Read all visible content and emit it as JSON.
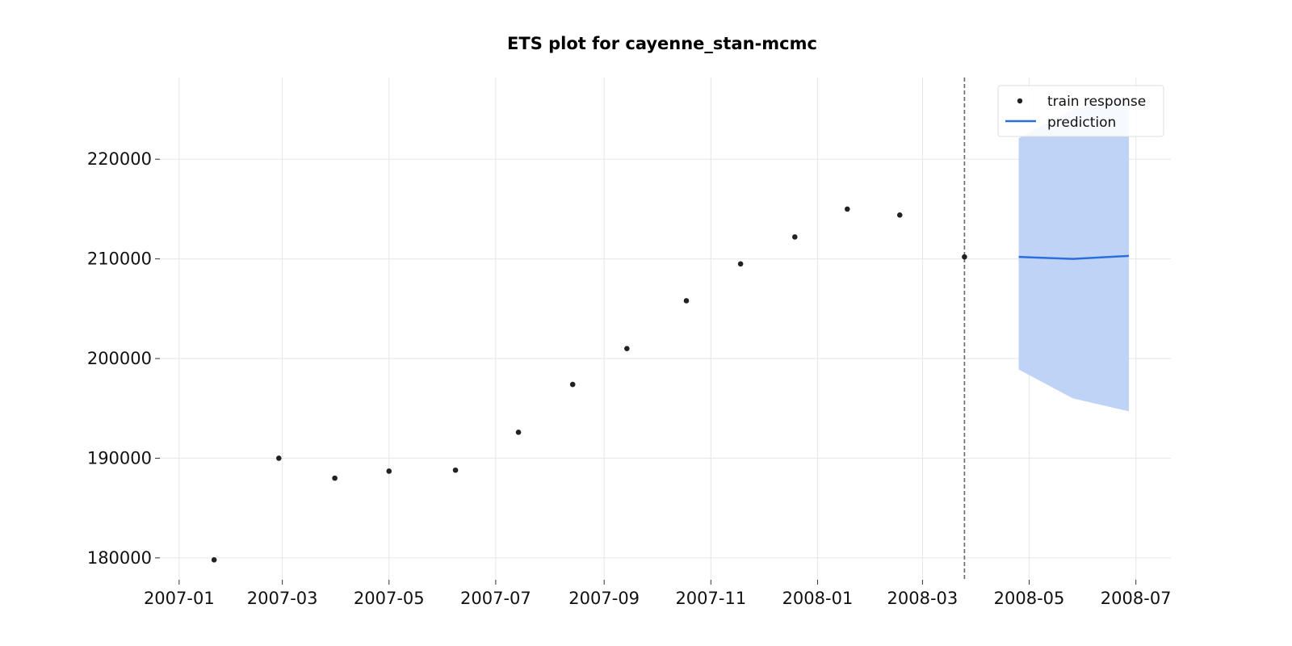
{
  "chart_data": {
    "type": "scatter",
    "title": "ETS plot for cayenne_stan-mcmc",
    "xlabel": "",
    "ylabel": "",
    "x_ticks": [
      "2007-01",
      "2007-03",
      "2007-05",
      "2007-07",
      "2007-09",
      "2007-11",
      "2008-01",
      "2008-03",
      "2008-05",
      "2008-07"
    ],
    "y_ticks": [
      180000,
      190000,
      200000,
      210000,
      220000
    ],
    "xlim": [
      "2006-12-21",
      "2008-07-21"
    ],
    "ylim": [
      177800,
      228200
    ],
    "grid": true,
    "legend_position": "top-right",
    "cutoff_date": "2008-03-25",
    "series": [
      {
        "name": "train response",
        "kind": "scatter",
        "color": "#222222",
        "points": [
          {
            "x": "2007-01-21",
            "y": 179800
          },
          {
            "x": "2007-02-27",
            "y": 190000
          },
          {
            "x": "2007-03-31",
            "y": 188000
          },
          {
            "x": "2007-05-01",
            "y": 188700
          },
          {
            "x": "2007-06-08",
            "y": 188800
          },
          {
            "x": "2007-07-14",
            "y": 192600
          },
          {
            "x": "2007-08-14",
            "y": 197400
          },
          {
            "x": "2007-09-14",
            "y": 201000
          },
          {
            "x": "2007-10-18",
            "y": 205800
          },
          {
            "x": "2007-11-18",
            "y": 209500
          },
          {
            "x": "2007-12-19",
            "y": 212200
          },
          {
            "x": "2008-01-18",
            "y": 215000
          },
          {
            "x": "2008-02-17",
            "y": 214400
          },
          {
            "x": "2008-03-25",
            "y": 210200
          }
        ]
      },
      {
        "name": "prediction",
        "kind": "line",
        "color": "#2a6fdb",
        "band_color": "#bfd3f7",
        "points": [
          {
            "x": "2008-04-25",
            "y": 210200,
            "lower": 198900,
            "upper": 222100
          },
          {
            "x": "2008-05-26",
            "y": 210000,
            "lower": 196000,
            "upper": 225000
          },
          {
            "x": "2008-06-27",
            "y": 210300,
            "lower": 194700,
            "upper": 226200
          }
        ]
      }
    ]
  }
}
